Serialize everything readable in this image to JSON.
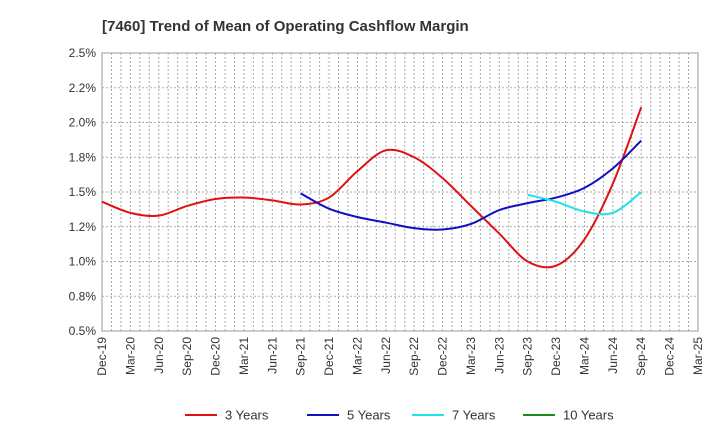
{
  "chart_data": {
    "type": "line",
    "title": "[7460]  Trend of Mean of Operating Cashflow Margin",
    "xlabel": "",
    "ylabel": "",
    "x_ticks": [
      "Dec-19",
      "Mar-20",
      "Jun-20",
      "Sep-20",
      "Dec-20",
      "Mar-21",
      "Jun-21",
      "Sep-21",
      "Dec-21",
      "Mar-22",
      "Jun-22",
      "Sep-22",
      "Dec-22",
      "Mar-23",
      "Jun-23",
      "Sep-23",
      "Dec-23",
      "Mar-24",
      "Jun-24",
      "Sep-24",
      "Dec-24",
      "Mar-25"
    ],
    "y_ticks": [
      "2.5%",
      "2.2%",
      "2.0%",
      "1.8%",
      "1.5%",
      "1.2%",
      "1.0%",
      "0.8%",
      "0.5%"
    ],
    "ylim": [
      0.5,
      2.5
    ],
    "grid": true,
    "legend_position": "bottom",
    "series": [
      {
        "name": "3 Years",
        "color": "#e01010",
        "x": [
          "Dec-19",
          "Mar-20",
          "Jun-20",
          "Sep-20",
          "Dec-20",
          "Mar-21",
          "Jun-21",
          "Sep-21",
          "Dec-21",
          "Mar-22",
          "Jun-22",
          "Sep-22",
          "Dec-22",
          "Mar-23",
          "Jun-23",
          "Sep-23",
          "Dec-23",
          "Mar-24",
          "Jun-24",
          "Sep-24"
        ],
        "values": [
          1.43,
          1.35,
          1.33,
          1.4,
          1.45,
          1.46,
          1.44,
          1.41,
          1.46,
          1.65,
          1.8,
          1.75,
          1.6,
          1.4,
          1.2,
          1.0,
          0.97,
          1.16,
          1.56,
          2.11
        ]
      },
      {
        "name": "5 Years",
        "color": "#1010c0",
        "x": [
          "Sep-21",
          "Dec-21",
          "Mar-22",
          "Jun-22",
          "Sep-22",
          "Dec-22",
          "Mar-23",
          "Jun-23",
          "Sep-23",
          "Dec-23",
          "Mar-24",
          "Jun-24",
          "Sep-24"
        ],
        "values": [
          1.49,
          1.38,
          1.32,
          1.28,
          1.24,
          1.23,
          1.27,
          1.37,
          1.42,
          1.46,
          1.53,
          1.67,
          1.87
        ]
      },
      {
        "name": "7 Years",
        "color": "#22e0e8",
        "x": [
          "Sep-23",
          "Dec-23",
          "Mar-24",
          "Jun-24",
          "Sep-24"
        ],
        "values": [
          1.48,
          1.43,
          1.36,
          1.35,
          1.5
        ]
      },
      {
        "name": "10 Years",
        "color": "#1a8a1a",
        "x": [],
        "values": []
      }
    ]
  }
}
